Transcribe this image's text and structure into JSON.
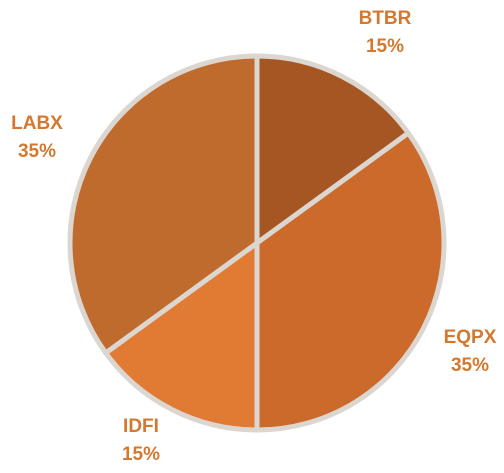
{
  "chart_data": {
    "type": "pie",
    "title": "",
    "legend": "none",
    "start_angle_deg": 0,
    "direction": "clockwise",
    "categories": [
      "BTBR",
      "EQPX",
      "IDFI",
      "LABX"
    ],
    "values": [
      15,
      35,
      15,
      35
    ],
    "labels": [
      {
        "category": "BTBR",
        "percent": "15%"
      },
      {
        "category": "EQPX",
        "percent": "35%"
      },
      {
        "category": "IDFI",
        "percent": "15%"
      },
      {
        "category": "LABX",
        "percent": "35%"
      }
    ],
    "colors": [
      "#a65623",
      "#cc6a2c",
      "#e17a33",
      "#c06b2e"
    ],
    "label_color": "#d4782f",
    "separator_color": "#dcd6d0"
  }
}
